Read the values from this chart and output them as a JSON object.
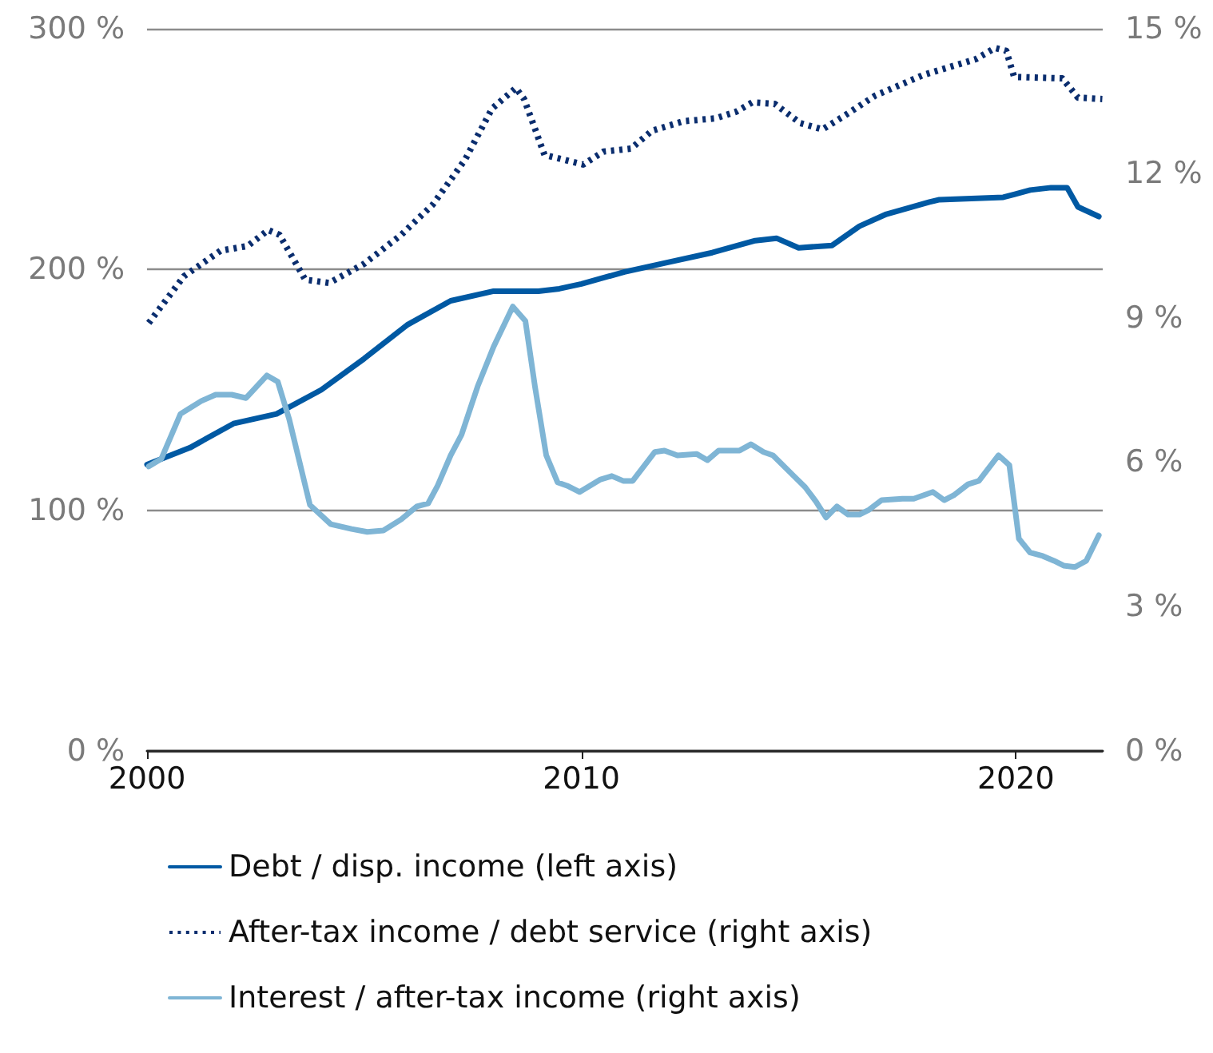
{
  "chart_data": {
    "type": "line",
    "xlim": [
      2000,
      2022
    ],
    "xticks": [
      2000,
      2010,
      2020
    ],
    "ylim": [
      0,
      300
    ],
    "yticks": [
      {
        "value": 0,
        "label": "0 %"
      },
      {
        "value": 100,
        "label": "100 %"
      },
      {
        "value": 200,
        "label": "200 %"
      },
      {
        "value": 300,
        "label": "300 %"
      }
    ],
    "y2lim": [
      0,
      15
    ],
    "y2ticks": [
      {
        "value": 0,
        "label": "0 %"
      },
      {
        "value": 3,
        "label": "3 %"
      },
      {
        "value": 6,
        "label": "6 %"
      },
      {
        "value": 9,
        "label": "9 %"
      },
      {
        "value": 12,
        "label": "12 %"
      },
      {
        "value": 15,
        "label": "15 %"
      }
    ],
    "grid": "y",
    "legend": "bottom",
    "marker": "none",
    "series": [
      {
        "name": "Debt / disp. income (left axis)",
        "color": "#0059a3",
        "line_style": "solid",
        "x": [
          2000.0,
          2000.99,
          2001.99,
          2002.98,
          2004.01,
          2005.0,
          2005.99,
          2006.99,
          2007.98,
          2009.01,
          2009.49,
          2010.0,
          2010.99,
          2011.99,
          2013.01,
          2014.0,
          2014.49,
          2015.0,
          2015.77,
          2016.4,
          2017.02,
          2018.01,
          2018.24,
          2019.71,
          2020.33,
          2020.81,
          2021.18,
          2021.43,
          2021.91
        ],
        "values": [
          119,
          126,
          136,
          140,
          150,
          163,
          177,
          187,
          191,
          191,
          192,
          194,
          199,
          203,
          207,
          212,
          213,
          209,
          210,
          218,
          223,
          228,
          229,
          230,
          233,
          234,
          234,
          226,
          222
        ]
      },
      {
        "name": "After-tax income / debt service (right axis)",
        "color": "#0a2d6e",
        "line_style": "dotted",
        "axis": "y2",
        "x": [
          2000.04,
          2000.85,
          2001.69,
          2002.32,
          2002.79,
          2003.05,
          2003.64,
          2004.19,
          2005.0,
          2005.85,
          2006.58,
          2007.32,
          2007.94,
          2008.49,
          2008.68,
          2009.15,
          2010.04,
          2010.51,
          2011.14,
          2011.62,
          2012.35,
          2013.09,
          2013.57,
          2013.93,
          2014.45,
          2015.04,
          2015.55,
          2016.03,
          2016.76,
          2017.87,
          2019.08,
          2019.52,
          2019.78,
          2019.96,
          2021.07,
          2021.43,
          2021.99
        ],
        "values": [
          8.89,
          9.86,
          10.39,
          10.49,
          10.82,
          10.72,
          9.79,
          9.72,
          10.12,
          10.72,
          11.35,
          12.28,
          13.34,
          13.77,
          13.54,
          12.38,
          12.18,
          12.45,
          12.51,
          12.88,
          13.08,
          13.14,
          13.28,
          13.47,
          13.44,
          13.04,
          12.91,
          13.18,
          13.61,
          14.04,
          14.37,
          14.6,
          14.54,
          14.0,
          13.97,
          13.57,
          13.54
        ]
      },
      {
        "name": "Interest / after-tax income (right axis)",
        "color": "#7fb5d5",
        "line_style": "solid",
        "axis": "y2",
        "x": [
          2000.04,
          2000.33,
          2000.77,
          2001.25,
          2001.58,
          2001.95,
          2002.28,
          2002.76,
          2003.01,
          2003.27,
          2003.75,
          2004.23,
          2004.71,
          2005.07,
          2005.44,
          2005.85,
          2006.21,
          2006.47,
          2006.69,
          2006.99,
          2007.24,
          2007.61,
          2007.98,
          2008.42,
          2008.71,
          2008.93,
          2009.19,
          2009.45,
          2009.67,
          2009.96,
          2010.44,
          2010.7,
          2010.96,
          2011.18,
          2011.69,
          2011.91,
          2012.21,
          2012.65,
          2012.9,
          2013.16,
          2013.64,
          2013.9,
          2014.19,
          2014.41,
          2014.89,
          2015.15,
          2015.4,
          2015.63,
          2015.88,
          2016.14,
          2016.4,
          2016.62,
          2016.91,
          2017.39,
          2017.65,
          2018.09,
          2018.35,
          2018.57,
          2018.9,
          2019.15,
          2019.6,
          2019.85,
          2020.07,
          2020.33,
          2020.62,
          2020.88,
          2021.1,
          2021.36,
          2021.62,
          2021.91
        ],
        "values": [
          5.91,
          6.07,
          7.0,
          7.27,
          7.4,
          7.4,
          7.33,
          7.8,
          7.67,
          6.9,
          5.11,
          4.71,
          4.61,
          4.55,
          4.58,
          4.81,
          5.08,
          5.14,
          5.51,
          6.14,
          6.57,
          7.57,
          8.4,
          9.23,
          8.93,
          7.57,
          6.14,
          5.58,
          5.51,
          5.38,
          5.64,
          5.71,
          5.61,
          5.61,
          6.21,
          6.24,
          6.14,
          6.17,
          6.04,
          6.24,
          6.24,
          6.37,
          6.21,
          6.14,
          5.71,
          5.48,
          5.18,
          4.85,
          5.08,
          4.91,
          4.91,
          5.01,
          5.21,
          5.24,
          5.24,
          5.38,
          5.21,
          5.31,
          5.54,
          5.61,
          6.14,
          5.94,
          4.41,
          4.12,
          4.05,
          3.95,
          3.85,
          3.82,
          3.95,
          4.48
        ]
      }
    ]
  }
}
